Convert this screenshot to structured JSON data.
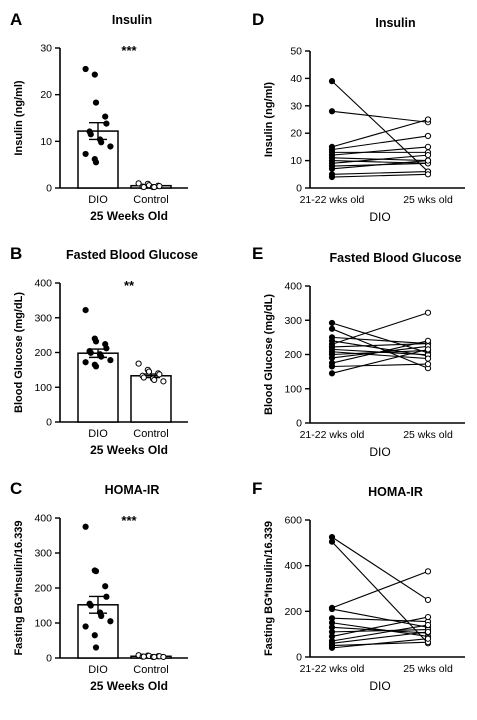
{
  "chart_data": [
    {
      "panel_letter": "A",
      "type": "bar",
      "title": "Insulin",
      "ylabel": "Insulin (ng/ml)",
      "xlabel": "25 Weeks Old",
      "ylim": [
        0,
        30
      ],
      "yticks": [
        "0",
        "10",
        "20",
        "30"
      ],
      "categories": [
        "DIO",
        "Control"
      ],
      "values": [
        12.2,
        0.5
      ],
      "sem": [
        1.8,
        0.1
      ],
      "points": [
        [
          25.5,
          24.3,
          18.3,
          15.3,
          13.8,
          12.1,
          11.5,
          10.4,
          9.8,
          8.9,
          7.3,
          6.2,
          5.5
        ],
        [
          1.0,
          0.9,
          0.6,
          0.5,
          0.4,
          0.3,
          0.2,
          0.2,
          0.2
        ]
      ],
      "significance": "***"
    },
    {
      "panel_letter": "B",
      "type": "bar",
      "title": "Fasted Blood Glucose",
      "ylabel": "Blood Glucose (mg/dL)",
      "xlabel": "25 Weeks Old",
      "ylim": [
        0,
        400
      ],
      "yticks": [
        "0",
        "100",
        "200",
        "300",
        "400"
      ],
      "categories": [
        "DIO",
        "Control"
      ],
      "values": [
        198,
        133
      ],
      "sem": [
        12,
        5
      ],
      "points": [
        [
          322,
          240,
          232,
          224,
          212,
          204,
          199,
          195,
          188,
          178,
          172,
          165,
          160
        ],
        [
          168,
          150,
          145,
          140,
          137,
          133,
          128,
          125,
          121,
          117
        ]
      ],
      "significance": "**"
    },
    {
      "panel_letter": "C",
      "type": "bar",
      "title": "HOMA-IR",
      "ylabel": "Fasting BG*Insulin/16.339",
      "xlabel": "25 Weeks Old",
      "ylim": [
        0,
        400
      ],
      "yticks": [
        "0",
        "100",
        "200",
        "300",
        "400"
      ],
      "categories": [
        "DIO",
        "Control"
      ],
      "values": [
        152,
        5
      ],
      "sem": [
        24,
        1
      ],
      "points": [
        [
          375,
          250,
          248,
          205,
          175,
          155,
          150,
          130,
          120,
          105,
          90,
          65,
          30
        ],
        [
          8,
          7,
          6,
          5,
          5,
          4,
          4,
          3,
          3,
          3
        ]
      ],
      "significance": "***"
    },
    {
      "panel_letter": "D",
      "type": "line",
      "title": "Insulin",
      "ylabel": "Insulin (ng/ml)",
      "xlabel": "DIO",
      "ylim": [
        0,
        50
      ],
      "yticks": [
        "0",
        "10",
        "20",
        "30",
        "40",
        "50"
      ],
      "categories": [
        "21-22 wks old",
        "25 wks old"
      ],
      "pairs": [
        [
          39,
          6
        ],
        [
          28,
          24
        ],
        [
          15,
          25
        ],
        [
          14,
          19
        ],
        [
          13,
          13
        ],
        [
          12,
          15
        ],
        [
          11,
          10
        ],
        [
          10,
          9
        ],
        [
          9,
          12
        ],
        [
          8,
          9
        ],
        [
          7,
          10
        ],
        [
          5,
          6
        ],
        [
          4,
          5
        ]
      ]
    },
    {
      "panel_letter": "E",
      "type": "line",
      "title": "Fasted Blood Glucose",
      "ylabel": "Blood Glucose (mg/dL)",
      "xlabel": "DIO",
      "ylim": [
        0,
        400
      ],
      "yticks": [
        "0",
        "100",
        "200",
        "300",
        "400"
      ],
      "categories": [
        "21-22 wks old",
        "25 wks old"
      ],
      "pairs": [
        [
          292,
          205
        ],
        [
          275,
          160
        ],
        [
          250,
          232
        ],
        [
          240,
          196
        ],
        [
          230,
          322
        ],
        [
          222,
          232
        ],
        [
          215,
          199
        ],
        [
          208,
          188
        ],
        [
          200,
          212
        ],
        [
          190,
          224
        ],
        [
          175,
          240
        ],
        [
          165,
          172
        ],
        [
          145,
          215
        ]
      ]
    },
    {
      "panel_letter": "F",
      "type": "line",
      "title": "HOMA-IR",
      "ylabel": "Fasting BG*Insulin/16.339",
      "xlabel": "DIO",
      "ylim": [
        0,
        600
      ],
      "yticks": [
        "0",
        "200",
        "400",
        "600"
      ],
      "categories": [
        "21-22 wks old",
        "25 wks old"
      ],
      "pairs": [
        [
          525,
          250
        ],
        [
          505,
          60
        ],
        [
          215,
          375
        ],
        [
          210,
          130
        ],
        [
          170,
          155
        ],
        [
          150,
          90
        ],
        [
          130,
          105
        ],
        [
          110,
          120
        ],
        [
          90,
          175
        ],
        [
          70,
          140
        ],
        [
          60,
          110
        ],
        [
          50,
          65
        ],
        [
          40,
          80
        ]
      ]
    }
  ]
}
